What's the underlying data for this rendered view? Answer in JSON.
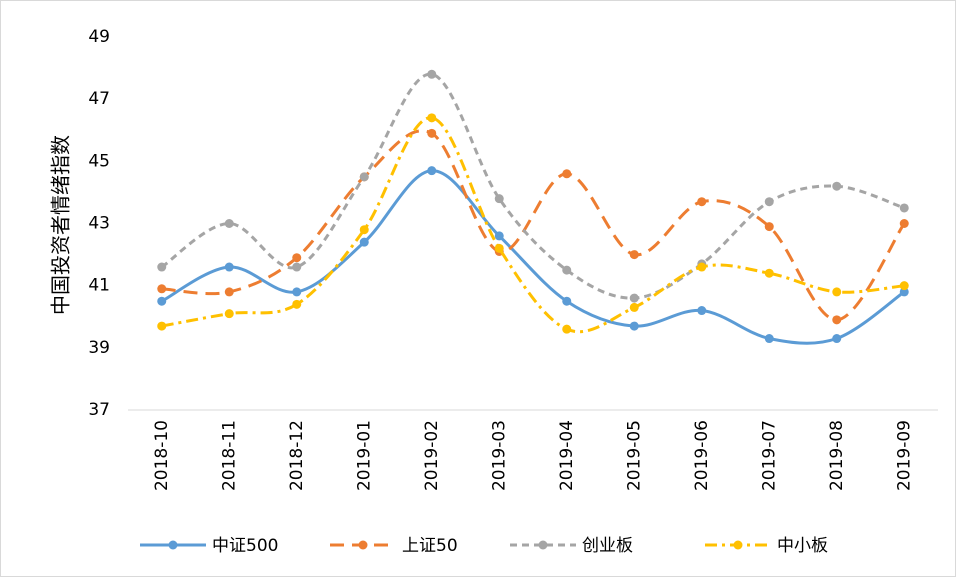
{
  "chart_data": {
    "type": "line",
    "y_axis_label": "中国投资者情绪指数",
    "categories": [
      "2018-10",
      "2018-11",
      "2018-12",
      "2019-01",
      "2019-02",
      "2019-03",
      "2019-04",
      "2019-05",
      "2019-06",
      "2019-07",
      "2019-08",
      "2019-09"
    ],
    "series": [
      {
        "name": "中证500",
        "color": "#5b9bd5",
        "values": [
          40.5,
          41.6,
          40.8,
          42.4,
          44.7,
          42.6,
          40.5,
          39.7,
          40.2,
          39.3,
          39.3,
          40.8
        ]
      },
      {
        "name": "上证50",
        "color": "#ed7d31",
        "values": [
          40.9,
          40.8,
          41.9,
          44.5,
          45.9,
          42.1,
          44.6,
          42.0,
          43.7,
          42.9,
          39.9,
          43.0
        ]
      },
      {
        "name": "创业板",
        "color": "#a5a5a5",
        "values": [
          41.6,
          43.0,
          41.6,
          44.5,
          47.8,
          43.8,
          41.5,
          40.6,
          41.7,
          43.7,
          44.2,
          43.5
        ]
      },
      {
        "name": "中小板",
        "color": "#ffc000",
        "values": [
          39.7,
          40.1,
          40.4,
          42.8,
          46.4,
          42.2,
          39.6,
          40.3,
          41.6,
          41.4,
          40.8,
          41.0
        ]
      }
    ],
    "ylim": [
      37,
      49
    ],
    "yticks": [
      37,
      39,
      41,
      43,
      45,
      47,
      49
    ],
    "grid": false,
    "legend": "bottom"
  }
}
